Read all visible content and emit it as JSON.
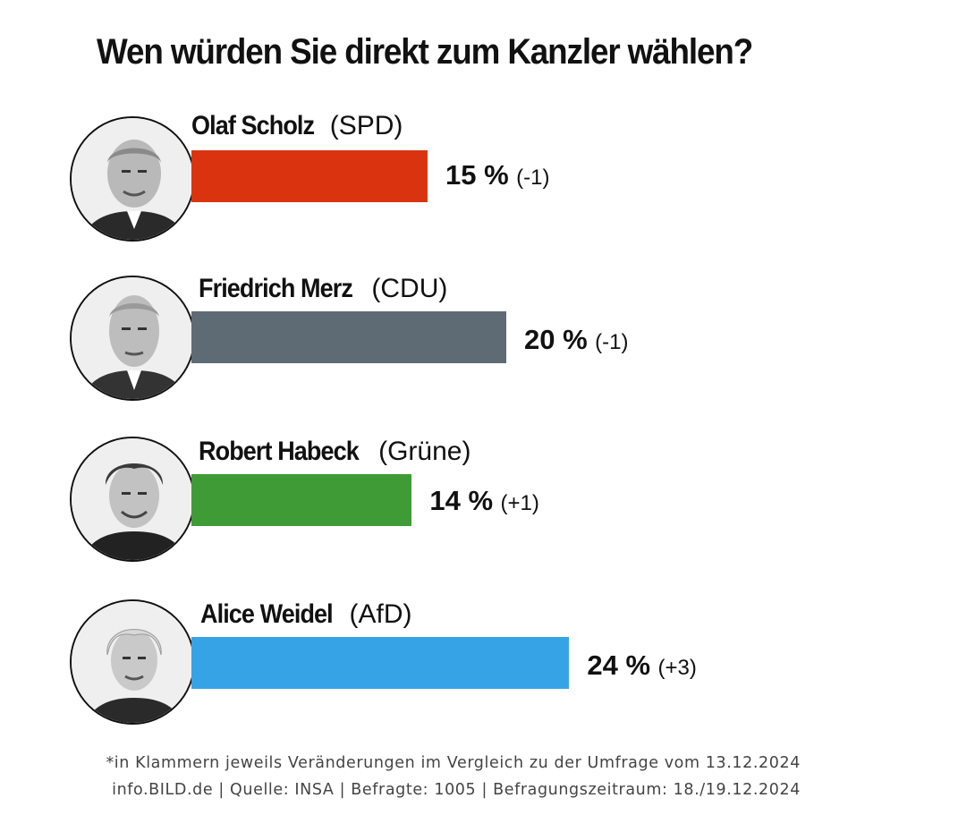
{
  "chart_data": {
    "type": "bar",
    "orientation": "horizontal",
    "title": "Wen würden Sie direkt zum Kanzler wählen?",
    "unit": "%",
    "categories": [
      {
        "name": "Olaf Scholz",
        "party": "(SPD)",
        "value": 15,
        "value_label": "15 %",
        "change_label": "(-1)",
        "color": "#d9340f"
      },
      {
        "name": "Friedrich Merz",
        "party": "(CDU)",
        "value": 20,
        "value_label": "20 %",
        "change_label": "(-1)",
        "color": "#5f6b74"
      },
      {
        "name": "Robert Habeck",
        "party": "(Grüne)",
        "value": 14,
        "value_label": "14 %",
        "change_label": "(+1)",
        "color": "#3f9b36"
      },
      {
        "name": "Alice Weidel",
        "party": "(AfD)",
        "value": 24,
        "value_label": "24 %",
        "change_label": "(+3)",
        "color": "#36a3e6"
      }
    ],
    "grid": false,
    "legend": "none"
  },
  "footer": {
    "note": "*in Klammern jeweils Veränderungen im Vergleich zu der Umfrage vom 13.12.2024",
    "source": "info.BILD.de | Quelle: INSA | Befragte: 1005 | Befragungszeitraum: 18./19.12.2024"
  }
}
